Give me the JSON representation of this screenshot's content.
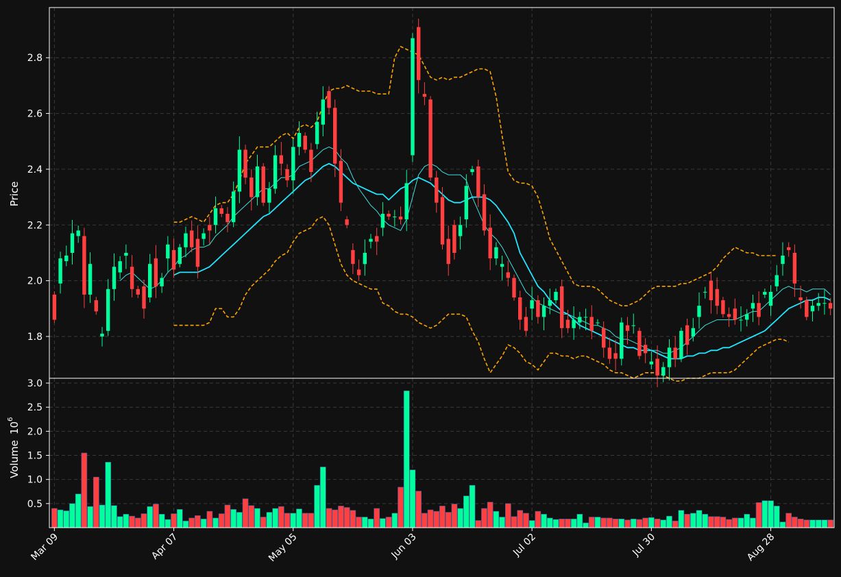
{
  "chart_data": {
    "type": "candlestick",
    "theme": {
      "background": "#111111",
      "up_color": "#00ff9c",
      "down_color": "#ff4040",
      "grid": "#3a3a3a",
      "ma_fast_color": "#40e0e0",
      "ma_slow_color": "#22e6ff",
      "band_color": "#ffa500"
    },
    "price_panel": {
      "ylabel": "Price",
      "yticks": [
        1.8,
        2.0,
        2.2,
        2.4,
        2.6,
        2.8
      ],
      "ylim": [
        1.65,
        2.98
      ]
    },
    "volume_panel": {
      "ylabel": "Volume",
      "ylabel_exponent": "6",
      "yticks": [
        0.5,
        1.0,
        1.5,
        2.0,
        2.5,
        3.0
      ],
      "ylim": [
        0,
        3.1
      ]
    },
    "xticks": [
      {
        "index": 0,
        "label": "Mar 09"
      },
      {
        "index": 20,
        "label": "Apr 07"
      },
      {
        "index": 40,
        "label": "May 05"
      },
      {
        "index": 60,
        "label": "Jun 03"
      },
      {
        "index": 80,
        "label": "Jul 02"
      },
      {
        "index": 100,
        "label": "Jul 30"
      },
      {
        "index": 120,
        "label": "Aug 28"
      }
    ],
    "series": {
      "close": [
        1.86,
        2.08,
        2.09,
        2.17,
        2.18,
        1.95,
        2.06,
        1.89,
        1.81,
        1.97,
        2.05,
        2.07,
        2.1,
        1.97,
        1.95,
        1.9,
        2.06,
        1.98,
        2.01,
        2.13,
        2.04,
        2.12,
        2.17,
        2.12,
        2.05,
        2.17,
        2.18,
        2.26,
        2.24,
        2.21,
        2.32,
        2.47,
        2.37,
        2.3,
        2.41,
        2.28,
        2.33,
        2.45,
        2.42,
        2.36,
        2.48,
        2.53,
        2.47,
        2.39,
        2.57,
        2.65,
        2.62,
        2.42,
        2.28,
        2.2,
        2.06,
        2.02,
        2.1,
        2.15,
        2.14,
        2.24,
        2.23,
        2.23,
        2.22,
        2.35,
        2.87,
        2.72,
        2.66,
        2.37,
        2.28,
        2.13,
        2.06,
        2.1,
        2.2,
        2.34,
        2.4,
        2.3,
        2.18,
        2.08,
        2.12,
        2.06,
        2.01,
        1.94,
        1.86,
        1.82,
        1.93,
        1.87,
        1.91,
        1.93,
        1.96,
        1.83,
        1.83,
        1.86,
        1.87,
        1.87,
        1.82,
        1.85,
        1.76,
        1.72,
        1.72,
        1.85,
        1.82,
        1.84,
        1.73,
        1.74,
        1.71,
        1.66,
        1.69,
        1.76,
        1.72,
        1.82,
        1.77,
        1.83,
        1.91,
        1.96,
        1.93,
        1.91,
        1.88,
        1.87,
        1.86,
        1.86,
        1.88,
        1.92,
        1.87,
        1.96,
        1.96,
        2.02,
        2.09,
        2.11,
        1.99,
        1.93,
        1.87,
        1.91,
        1.92,
        1.92,
        1.9
      ],
      "open": [
        1.95,
        1.99,
        2.07,
        2.1,
        2.16,
        2.16,
        1.95,
        1.93,
        1.8,
        1.82,
        1.97,
        2.03,
        2.09,
        2.05,
        1.97,
        1.98,
        1.94,
        2.08,
        1.98,
        2.08,
        2.11,
        2.06,
        2.12,
        2.18,
        2.15,
        2.15,
        2.2,
        2.2,
        2.26,
        2.24,
        2.21,
        2.32,
        2.47,
        2.37,
        2.3,
        2.41,
        2.28,
        2.33,
        2.45,
        2.4,
        2.36,
        2.48,
        2.52,
        2.47,
        2.49,
        2.56,
        2.68,
        2.62,
        2.43,
        2.22,
        2.11,
        2.04,
        2.06,
        2.14,
        2.16,
        2.19,
        2.24,
        2.23,
        2.23,
        2.22,
        2.45,
        2.91,
        2.67,
        2.65,
        2.37,
        2.3,
        2.15,
        2.2,
        2.16,
        2.22,
        2.39,
        2.41,
        2.31,
        2.19,
        2.08,
        2.05,
        2.03,
        2.01,
        1.94,
        1.87,
        1.9,
        1.93,
        1.87,
        1.91,
        1.93,
        1.98,
        1.86,
        1.83,
        1.85,
        1.87,
        1.87,
        1.85,
        1.83,
        1.76,
        1.74,
        1.72,
        1.84,
        1.84,
        1.82,
        1.77,
        1.7,
        1.72,
        1.66,
        1.69,
        1.76,
        1.72,
        1.84,
        1.8,
        1.87,
        1.96,
        2.0,
        1.97,
        1.93,
        1.88,
        1.9,
        1.86,
        1.86,
        1.9,
        1.92,
        1.95,
        1.91,
        1.98,
        2.06,
        2.12,
        2.1,
        1.94,
        1.93,
        1.89,
        1.91,
        1.92,
        1.92
      ]
    },
    "volume": [
      0.4,
      0.37,
      0.35,
      0.5,
      0.7,
      1.55,
      0.44,
      1.05,
      0.47,
      1.36,
      0.46,
      0.23,
      0.28,
      0.24,
      0.2,
      0.29,
      0.44,
      0.49,
      0.28,
      0.17,
      0.29,
      0.38,
      0.14,
      0.2,
      0.25,
      0.18,
      0.34,
      0.2,
      0.29,
      0.47,
      0.38,
      0.32,
      0.6,
      0.46,
      0.4,
      0.22,
      0.32,
      0.4,
      0.44,
      0.3,
      0.3,
      0.39,
      0.3,
      0.3,
      0.88,
      1.26,
      0.4,
      0.37,
      0.45,
      0.42,
      0.36,
      0.22,
      0.22,
      0.18,
      0.4,
      0.19,
      0.22,
      0.3,
      0.84,
      2.84,
      1.2,
      0.76,
      0.3,
      0.37,
      0.34,
      0.45,
      0.32,
      0.49,
      0.4,
      0.66,
      0.88,
      0.15,
      0.4,
      0.53,
      0.34,
      0.22,
      0.5,
      0.23,
      0.36,
      0.3,
      0.15,
      0.34,
      0.28,
      0.2,
      0.17,
      0.18,
      0.18,
      0.18,
      0.28,
      0.1,
      0.22,
      0.22,
      0.2,
      0.2,
      0.18,
      0.18,
      0.16,
      0.18,
      0.17,
      0.2,
      0.21,
      0.18,
      0.16,
      0.24,
      0.14,
      0.36,
      0.28,
      0.3,
      0.36,
      0.28,
      0.23,
      0.23,
      0.22,
      0.17,
      0.2,
      0.2,
      0.28,
      0.2,
      0.52,
      0.56,
      0.56,
      0.45,
      0.12,
      0.3,
      0.22,
      0.18,
      0.16,
      0.16,
      0.16,
      0.16,
      0.16
    ],
    "ma_fast": [
      null,
      null,
      null,
      null,
      null,
      null,
      null,
      null,
      null,
      null,
      null,
      2.0,
      2.02,
      2.03,
      2.01,
      1.99,
      1.97,
      1.98,
      2.0,
      2.03,
      2.05,
      2.08,
      2.09,
      2.11,
      2.12,
      2.12,
      2.13,
      2.16,
      2.18,
      2.2,
      2.23,
      2.25,
      2.27,
      2.29,
      2.31,
      2.33,
      2.33,
      2.35,
      2.37,
      2.37,
      2.38,
      2.41,
      2.42,
      2.43,
      2.45,
      2.47,
      2.48,
      2.47,
      2.44,
      2.42,
      2.37,
      2.33,
      2.3,
      2.27,
      2.25,
      2.22,
      2.2,
      2.19,
      2.18,
      2.22,
      2.3,
      2.38,
      2.41,
      2.42,
      2.41,
      2.39,
      2.38,
      2.38,
      2.38,
      2.36,
      2.3,
      2.25,
      2.2,
      2.17,
      2.15,
      2.12,
      2.08,
      2.04,
      2.0,
      1.96,
      1.94,
      1.92,
      1.91,
      1.9,
      1.89,
      1.88,
      1.88,
      1.87,
      1.86,
      1.85,
      1.84,
      1.84,
      1.83,
      1.82,
      1.8,
      1.79,
      1.79,
      1.78,
      1.77,
      1.76,
      1.75,
      1.75,
      1.74,
      1.74,
      1.75,
      1.76,
      1.78,
      1.8,
      1.82,
      1.84,
      1.85,
      1.86,
      1.86,
      1.86,
      1.86,
      1.87,
      1.88,
      1.89,
      1.89,
      1.91,
      1.93,
      1.95,
      1.97,
      1.98,
      1.97,
      1.97,
      1.96,
      1.97,
      1.97,
      1.97,
      1.95
    ],
    "ma_slow": [
      null,
      null,
      null,
      null,
      null,
      null,
      null,
      null,
      null,
      null,
      null,
      null,
      null,
      null,
      null,
      null,
      null,
      null,
      null,
      null,
      2.02,
      2.03,
      2.03,
      2.03,
      2.03,
      2.04,
      2.05,
      2.07,
      2.09,
      2.11,
      2.13,
      2.15,
      2.17,
      2.19,
      2.21,
      2.23,
      2.24,
      2.26,
      2.28,
      2.3,
      2.32,
      2.34,
      2.36,
      2.37,
      2.39,
      2.41,
      2.42,
      2.41,
      2.39,
      2.37,
      2.35,
      2.34,
      2.33,
      2.32,
      2.31,
      2.31,
      2.29,
      2.31,
      2.33,
      2.34,
      2.36,
      2.37,
      2.36,
      2.35,
      2.33,
      2.31,
      2.29,
      2.28,
      2.28,
      2.29,
      2.3,
      2.3,
      2.3,
      2.29,
      2.27,
      2.24,
      2.21,
      2.17,
      2.1,
      2.06,
      2.02,
      1.98,
      1.96,
      1.93,
      1.91,
      1.89,
      1.88,
      1.86,
      1.84,
      1.83,
      1.82,
      1.81,
      1.8,
      1.79,
      1.78,
      1.77,
      1.76,
      1.76,
      1.75,
      1.75,
      1.75,
      1.74,
      1.73,
      1.72,
      1.72,
      1.72,
      1.73,
      1.73,
      1.74,
      1.74,
      1.75,
      1.75,
      1.76,
      1.76,
      1.77,
      1.78,
      1.79,
      1.8,
      1.81,
      1.82,
      1.84,
      1.86,
      1.88,
      1.9,
      1.91,
      1.92,
      1.93,
      1.93,
      1.94,
      1.94,
      1.93
    ],
    "band_upper": [
      null,
      null,
      null,
      null,
      null,
      null,
      null,
      null,
      null,
      null,
      null,
      null,
      null,
      null,
      null,
      null,
      null,
      null,
      null,
      null,
      2.21,
      2.21,
      2.22,
      2.23,
      2.22,
      2.21,
      2.24,
      2.27,
      2.28,
      2.28,
      2.31,
      2.36,
      2.42,
      2.45,
      2.48,
      2.48,
      2.48,
      2.5,
      2.52,
      2.53,
      2.51,
      2.55,
      2.56,
      2.55,
      2.57,
      2.63,
      2.68,
      2.69,
      2.69,
      2.7,
      2.69,
      2.68,
      2.68,
      2.68,
      2.67,
      2.67,
      2.67,
      2.8,
      2.84,
      2.83,
      2.82,
      2.81,
      2.77,
      2.73,
      2.72,
      2.73,
      2.72,
      2.73,
      2.73,
      2.74,
      2.75,
      2.76,
      2.76,
      2.75,
      2.66,
      2.52,
      2.39,
      2.36,
      2.35,
      2.35,
      2.34,
      2.3,
      2.23,
      2.15,
      2.11,
      2.07,
      2.03,
      1.99,
      1.98,
      1.98,
      1.98,
      1.97,
      1.95,
      1.93,
      1.92,
      1.91,
      1.91,
      1.92,
      1.93,
      1.95,
      1.97,
      1.98,
      1.98,
      1.98,
      1.98,
      1.99,
      1.99,
      2.0,
      2.01,
      2.02,
      2.03,
      2.05,
      2.08,
      2.1,
      2.12,
      2.11,
      2.1,
      2.1,
      2.09,
      2.09,
      2.09,
      2.09
    ],
    "band_lower": [
      null,
      null,
      null,
      null,
      null,
      null,
      null,
      null,
      null,
      null,
      null,
      null,
      null,
      null,
      null,
      null,
      null,
      null,
      null,
      null,
      1.84,
      1.84,
      1.84,
      1.84,
      1.84,
      1.84,
      1.85,
      1.9,
      1.9,
      1.87,
      1.87,
      1.9,
      1.95,
      1.98,
      2.0,
      2.02,
      2.04,
      2.07,
      2.09,
      2.1,
      2.14,
      2.17,
      2.18,
      2.19,
      2.22,
      2.23,
      2.2,
      2.13,
      2.06,
      2.02,
      2.0,
      1.99,
      1.98,
      1.97,
      1.97,
      1.92,
      1.91,
      1.89,
      1.88,
      1.88,
      1.87,
      1.85,
      1.84,
      1.83,
      1.84,
      1.86,
      1.88,
      1.88,
      1.88,
      1.87,
      1.82,
      1.78,
      1.72,
      1.67,
      1.7,
      1.73,
      1.77,
      1.76,
      1.74,
      1.71,
      1.7,
      1.68,
      1.71,
      1.74,
      1.74,
      1.73,
      1.73,
      1.72,
      1.73,
      1.73,
      1.72,
      1.71,
      1.7,
      1.68,
      1.67,
      1.67,
      1.66,
      1.65,
      1.66,
      1.67,
      1.67,
      1.67,
      1.66,
      1.65,
      1.64,
      1.64,
      1.65,
      1.65,
      1.65,
      1.66,
      1.67,
      1.67,
      1.67,
      1.67,
      1.68,
      1.7,
      1.72,
      1.74,
      1.76,
      1.77,
      1.78,
      1.79,
      1.79,
      1.78
    ]
  }
}
